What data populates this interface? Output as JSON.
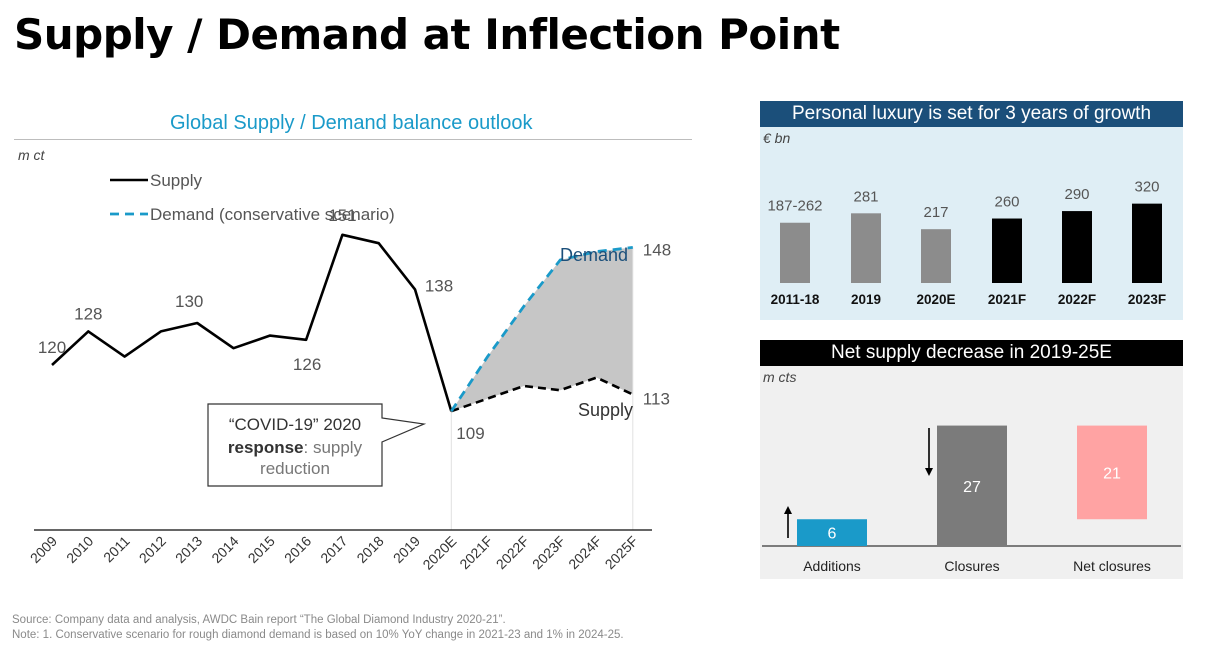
{
  "page": {
    "title": "Supply / Demand at Inflection Point"
  },
  "main_chart": {
    "title": "Global Supply / Demand balance outlook",
    "unit": "m ct"
  },
  "luxury_panel": {
    "title": "Personal luxury is set for 3 years of growth",
    "unit": "€ bn"
  },
  "net_panel": {
    "title": "Net supply decrease in 2019-25E",
    "unit": "m cts"
  },
  "callout": {
    "line1": "“COVID-19” 2020",
    "bold": "response",
    "rest": ": supply",
    "line3": "reduction"
  },
  "footer": {
    "source": "Source: Company data and analysis, AWDC Bain report “The Global Diamond Industry 2020-21”.",
    "note": "Note: 1. Conservative scenario for rough diamond demand is based on 10% YoY change in 2021-23 and 1% in 2024-25."
  },
  "colors": {
    "accent": "#1a9ac9",
    "panel_bg": "#dfeef5",
    "panel_header": "#1b4f7a",
    "dark_header": "#000000",
    "gap_fill": "#c6c6c6",
    "net_bar": "#ffa3a3",
    "grey_bar": "#8c8c8c",
    "closure_bar": "#7b7b7b"
  },
  "chart_data": [
    {
      "type": "line",
      "title": "Global Supply / Demand balance outlook",
      "ylabel": "m ct",
      "categories": [
        "2009",
        "2010",
        "2011",
        "2012",
        "2013",
        "2014",
        "2015",
        "2016",
        "2017",
        "2018",
        "2019",
        "2020E",
        "2021F",
        "2022F",
        "2023F",
        "2024F",
        "2025F"
      ],
      "series": [
        {
          "name": "Supply",
          "style": "solid",
          "color": "#000000",
          "values": [
            120,
            128,
            122,
            128,
            130,
            124,
            127,
            126,
            151,
            149,
            138,
            109,
            112,
            115,
            114,
            117,
            113
          ]
        },
        {
          "name": "Demand (conservative scenario)",
          "style": "dashed",
          "color": "#1a9ac9",
          "values": [
            null,
            null,
            null,
            null,
            null,
            null,
            null,
            null,
            null,
            null,
            null,
            109,
            122,
            134,
            145,
            147,
            148
          ]
        }
      ],
      "labels": [
        {
          "category": "2009",
          "text": "120"
        },
        {
          "category": "2010",
          "text": "128"
        },
        {
          "category": "2013",
          "text": "130"
        },
        {
          "category": "2016",
          "text": "126"
        },
        {
          "category": "2017",
          "text": "151"
        },
        {
          "category": "2019",
          "text": "138"
        },
        {
          "category": "2020E",
          "text": "109"
        },
        {
          "category": "2025F",
          "text": "148",
          "series": "Demand"
        },
        {
          "category": "2025F",
          "text": "113",
          "series": "Supply"
        }
      ],
      "annotations": [
        "Demand",
        "Supply"
      ],
      "ylim": [
        100,
        160
      ],
      "legend": "top-left",
      "grid": false
    },
    {
      "type": "bar",
      "title": "Personal luxury is set for 3 years of growth",
      "ylabel": "€ bn",
      "categories": [
        "2011-18",
        "2019",
        "2020E",
        "2021F",
        "2022F",
        "2023F"
      ],
      "values": [
        243,
        281,
        217,
        260,
        290,
        320
      ],
      "labels": [
        "187-262",
        "281",
        "217",
        "260",
        "290",
        "320"
      ],
      "colors": [
        "#8c8c8c",
        "#8c8c8c",
        "#8c8c8c",
        "#000000",
        "#000000",
        "#000000"
      ],
      "ylim": [
        0,
        330
      ]
    },
    {
      "type": "bar",
      "title": "Net supply decrease in 2019-25E",
      "ylabel": "m cts",
      "categories": [
        "Additions",
        "Closures",
        "Net closures"
      ],
      "values": [
        6,
        27,
        21
      ],
      "labels": [
        "6",
        "27",
        "21"
      ],
      "base": [
        0,
        0,
        6
      ],
      "colors": [
        "#1a9ac9",
        "#7b7b7b",
        "#ffa3a3"
      ],
      "ylim": [
        0,
        27
      ]
    }
  ]
}
